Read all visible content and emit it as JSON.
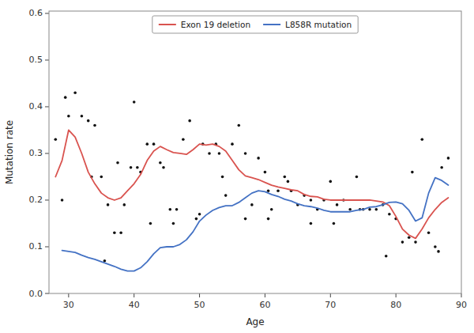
{
  "chart_data": {
    "type": "line",
    "xlabel": "Age",
    "ylabel": "Mutation rate",
    "xlim": [
      27,
      90
    ],
    "ylim": [
      0.0,
      0.605
    ],
    "xticks": [
      30,
      40,
      50,
      60,
      70,
      80,
      90
    ],
    "yticks": [
      {
        "value": 0.0,
        "label": "0.0"
      },
      0.1,
      0.2,
      0.3,
      0.4,
      0.5,
      0.6
    ],
    "grid": false,
    "legend": "top",
    "series": [
      {
        "type": "scatter",
        "marker": "circle",
        "color": "#111111",
        "x": [
          28.0,
          29.0,
          29.5,
          30.0,
          31.0,
          32.0,
          33.0,
          33.5,
          34.0,
          35.0,
          36.0,
          37.0,
          37.5,
          38.5,
          39.5,
          40.0,
          40.5,
          41.0,
          42.0,
          43.0,
          44.0,
          44.5,
          45.5,
          46.5,
          47.5,
          48.5,
          49.5,
          50.5,
          51.5,
          52.5,
          53.0,
          54.0,
          55.0,
          56.0,
          57.0,
          58.0,
          59.0,
          60.0,
          60.5,
          61.0,
          62.0,
          63.0,
          64.0,
          65.0,
          66.0,
          67.0,
          68.0,
          69.0,
          70.0,
          71.0,
          72.0,
          73.0,
          74.0,
          75.0,
          76.0,
          77.0,
          78.0,
          79.0,
          80.0,
          81.0,
          82.0,
          83.0,
          84.0,
          85.0,
          86.0,
          87.0,
          88.0,
          35.5,
          38.0,
          42.5,
          46.0,
          50.0,
          53.5,
          57.0,
          60.5,
          63.5,
          67.0,
          70.5,
          74.5,
          78.5,
          82.5,
          86.5
        ],
        "values": [
          0.33,
          0.2,
          0.42,
          0.38,
          0.43,
          0.38,
          0.37,
          0.25,
          0.36,
          0.25,
          0.19,
          0.13,
          0.28,
          0.19,
          0.27,
          0.41,
          0.27,
          0.26,
          0.32,
          0.32,
          0.28,
          0.27,
          0.18,
          0.18,
          0.33,
          0.37,
          0.16,
          0.32,
          0.3,
          0.32,
          0.3,
          0.21,
          0.32,
          0.36,
          0.3,
          0.19,
          0.29,
          0.26,
          0.16,
          0.18,
          0.22,
          0.25,
          0.22,
          0.19,
          0.21,
          0.2,
          0.18,
          0.2,
          0.24,
          0.19,
          0.2,
          0.18,
          0.25,
          0.18,
          0.18,
          0.18,
          0.19,
          0.17,
          0.16,
          0.11,
          0.12,
          0.11,
          0.33,
          0.13,
          0.1,
          0.27,
          0.29,
          0.07,
          0.13,
          0.15,
          0.15,
          0.17,
          0.25,
          0.16,
          0.22,
          0.24,
          0.15,
          0.15,
          0.18,
          0.08,
          0.26,
          0.09
        ]
      },
      {
        "name": "Exon 19 deletion",
        "type": "line",
        "color": "#D9534F",
        "x": [
          28,
          29,
          30,
          31,
          32,
          33,
          34,
          35,
          36,
          37,
          38,
          39,
          40,
          41,
          42,
          43,
          44,
          45,
          46,
          47,
          48,
          49,
          50,
          51,
          52,
          53,
          54,
          55,
          56,
          57,
          58,
          59,
          60,
          61,
          62,
          63,
          64,
          65,
          66,
          67,
          68,
          69,
          70,
          71,
          72,
          73,
          74,
          75,
          76,
          77,
          78,
          79,
          80,
          81,
          82,
          83,
          84,
          85,
          86,
          87,
          88
        ],
        "values": [
          0.25,
          0.285,
          0.35,
          0.335,
          0.3,
          0.26,
          0.235,
          0.215,
          0.205,
          0.2,
          0.205,
          0.22,
          0.235,
          0.255,
          0.285,
          0.305,
          0.315,
          0.308,
          0.302,
          0.3,
          0.298,
          0.308,
          0.32,
          0.318,
          0.32,
          0.315,
          0.305,
          0.285,
          0.265,
          0.252,
          0.248,
          0.244,
          0.238,
          0.232,
          0.228,
          0.225,
          0.222,
          0.22,
          0.212,
          0.208,
          0.207,
          0.202,
          0.2,
          0.2,
          0.2,
          0.2,
          0.2,
          0.2,
          0.2,
          0.198,
          0.196,
          0.188,
          0.165,
          0.138,
          0.125,
          0.118,
          0.138,
          0.162,
          0.18,
          0.195,
          0.205
        ]
      },
      {
        "name": "L858R mutation",
        "type": "line",
        "color": "#4472C4",
        "x": [
          29,
          30,
          31,
          32,
          33,
          34,
          35,
          36,
          37,
          38,
          39,
          40,
          41,
          42,
          43,
          44,
          45,
          46,
          47,
          48,
          49,
          50,
          51,
          52,
          53,
          54,
          55,
          56,
          57,
          58,
          59,
          60,
          61,
          62,
          63,
          64,
          65,
          66,
          67,
          68,
          69,
          70,
          71,
          72,
          73,
          74,
          75,
          76,
          77,
          78,
          79,
          80,
          81,
          82,
          83,
          84,
          85,
          86,
          87,
          88
        ],
        "values": [
          0.092,
          0.09,
          0.088,
          0.082,
          0.077,
          0.073,
          0.068,
          0.063,
          0.058,
          0.052,
          0.048,
          0.048,
          0.055,
          0.068,
          0.085,
          0.098,
          0.1,
          0.1,
          0.105,
          0.115,
          0.132,
          0.155,
          0.168,
          0.178,
          0.184,
          0.188,
          0.188,
          0.195,
          0.205,
          0.215,
          0.22,
          0.218,
          0.212,
          0.208,
          0.202,
          0.198,
          0.192,
          0.188,
          0.186,
          0.183,
          0.178,
          0.175,
          0.175,
          0.175,
          0.175,
          0.178,
          0.18,
          0.185,
          0.186,
          0.19,
          0.195,
          0.196,
          0.192,
          0.178,
          0.155,
          0.162,
          0.215,
          0.248,
          0.242,
          0.232
        ]
      }
    ]
  }
}
